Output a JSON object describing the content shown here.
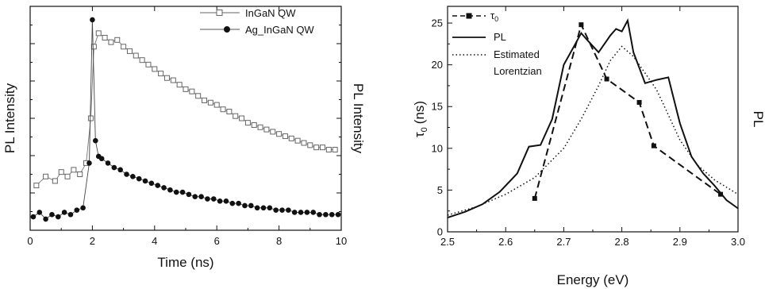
{
  "chart_data": [
    {
      "type": "scatter",
      "xlabel": "Time (ns)",
      "ylabel": "PL Intensity",
      "ylabel_right": "PL Intensity",
      "xlim": [
        0,
        10
      ],
      "ylim": [
        0,
        1
      ],
      "xticks": [
        0,
        2,
        4,
        6,
        8,
        10
      ],
      "grid": false,
      "legend_position": "top-right",
      "series": [
        {
          "name": "InGaN QW",
          "marker": "open-square",
          "color": "#666666",
          "x": [
            0.2,
            0.5,
            0.8,
            1.0,
            1.2,
            1.4,
            1.6,
            1.8,
            1.95,
            2.05,
            2.2,
            2.4,
            2.6,
            2.8,
            3.0,
            3.2,
            3.4,
            3.6,
            3.8,
            4.0,
            4.2,
            4.4,
            4.6,
            4.8,
            5.0,
            5.2,
            5.4,
            5.6,
            5.8,
            6.0,
            6.2,
            6.4,
            6.6,
            6.8,
            7.0,
            7.2,
            7.4,
            7.6,
            7.8,
            8.0,
            8.2,
            8.4,
            8.6,
            8.8,
            9.0,
            9.2,
            9.4,
            9.6,
            9.8
          ],
          "y": [
            0.2,
            0.24,
            0.22,
            0.26,
            0.24,
            0.27,
            0.25,
            0.3,
            0.5,
            0.82,
            0.88,
            0.86,
            0.84,
            0.85,
            0.82,
            0.8,
            0.78,
            0.76,
            0.74,
            0.72,
            0.7,
            0.68,
            0.67,
            0.65,
            0.63,
            0.62,
            0.6,
            0.58,
            0.57,
            0.56,
            0.54,
            0.53,
            0.51,
            0.5,
            0.48,
            0.47,
            0.46,
            0.45,
            0.44,
            0.43,
            0.42,
            0.41,
            0.4,
            0.39,
            0.38,
            0.37,
            0.37,
            0.36,
            0.36
          ]
        },
        {
          "name": "Ag_InGaN QW",
          "marker": "filled-circle",
          "color": "#111111",
          "x": [
            0.1,
            0.3,
            0.5,
            0.7,
            0.9,
            1.1,
            1.3,
            1.5,
            1.7,
            1.9,
            2.0,
            2.1,
            2.2,
            2.3,
            2.5,
            2.7,
            2.9,
            3.1,
            3.3,
            3.5,
            3.7,
            3.9,
            4.1,
            4.3,
            4.5,
            4.7,
            4.9,
            5.1,
            5.3,
            5.5,
            5.7,
            5.9,
            6.1,
            6.3,
            6.5,
            6.7,
            6.9,
            7.1,
            7.3,
            7.5,
            7.7,
            7.9,
            8.1,
            8.3,
            8.5,
            8.7,
            8.9,
            9.1,
            9.3,
            9.5,
            9.7,
            9.9
          ],
          "y": [
            0.06,
            0.08,
            0.05,
            0.07,
            0.06,
            0.08,
            0.07,
            0.09,
            0.1,
            0.3,
            0.94,
            0.4,
            0.33,
            0.32,
            0.3,
            0.28,
            0.27,
            0.25,
            0.24,
            0.23,
            0.22,
            0.21,
            0.2,
            0.19,
            0.18,
            0.17,
            0.17,
            0.16,
            0.15,
            0.15,
            0.14,
            0.14,
            0.13,
            0.13,
            0.12,
            0.12,
            0.11,
            0.11,
            0.1,
            0.1,
            0.1,
            0.09,
            0.09,
            0.09,
            0.08,
            0.08,
            0.08,
            0.08,
            0.07,
            0.07,
            0.07,
            0.07
          ]
        }
      ]
    },
    {
      "type": "line",
      "xlabel": "Energy (eV)",
      "ylabel": "τ",
      "ylabel_sub": "0",
      "ylabel_unit": "(ns)",
      "ylabel_right": "PL",
      "xlim": [
        2.5,
        3.0
      ],
      "ylim": [
        0,
        27
      ],
      "xticks": [
        2.5,
        2.6,
        2.7,
        2.8,
        2.9,
        3.0
      ],
      "xtick_labels": [
        "2.5",
        "2.6",
        "2.7",
        "2.8",
        "2.9",
        "3.0"
      ],
      "yticks": [
        0,
        5,
        10,
        15,
        20,
        25
      ],
      "grid": false,
      "legend_position": "top-left",
      "series": [
        {
          "name": "τ",
          "name_sub": "0",
          "style": "dashed-square",
          "color": "#111111",
          "x": [
            2.65,
            2.73,
            2.774,
            2.83,
            2.855,
            2.97
          ],
          "y": [
            4.0,
            24.8,
            18.3,
            15.5,
            10.3,
            4.5
          ]
        },
        {
          "name": "PL",
          "style": "solid",
          "color": "#111111",
          "x": [
            2.5,
            2.53,
            2.56,
            2.59,
            2.62,
            2.64,
            2.66,
            2.68,
            2.7,
            2.72,
            2.73,
            2.74,
            2.76,
            2.78,
            2.79,
            2.8,
            2.81,
            2.82,
            2.84,
            2.86,
            2.88,
            2.9,
            2.92,
            2.94,
            2.96,
            2.98,
            3.0
          ],
          "y": [
            1.7,
            2.4,
            3.3,
            4.8,
            7.0,
            10.2,
            10.4,
            13.5,
            20.0,
            22.5,
            23.8,
            23.0,
            21.5,
            23.5,
            24.3,
            24.0,
            25.3,
            21.5,
            17.8,
            18.2,
            18.5,
            13.0,
            9.0,
            7.0,
            5.5,
            3.8,
            2.8
          ]
        },
        {
          "name": "Estimated Lorentzian",
          "name_line1": "Estimated",
          "name_line2": "Lorentzian",
          "style": "dotted",
          "color": "#111111",
          "x": [
            2.5,
            2.55,
            2.6,
            2.65,
            2.7,
            2.73,
            2.76,
            2.78,
            2.8,
            2.82,
            2.84,
            2.86,
            2.88,
            2.9,
            2.93,
            2.96,
            3.0
          ],
          "y": [
            2.0,
            3.0,
            4.5,
            6.5,
            10.0,
            13.5,
            17.5,
            20.5,
            22.2,
            21.0,
            19.0,
            17.0,
            14.0,
            11.0,
            8.0,
            6.2,
            4.5
          ]
        }
      ]
    }
  ]
}
